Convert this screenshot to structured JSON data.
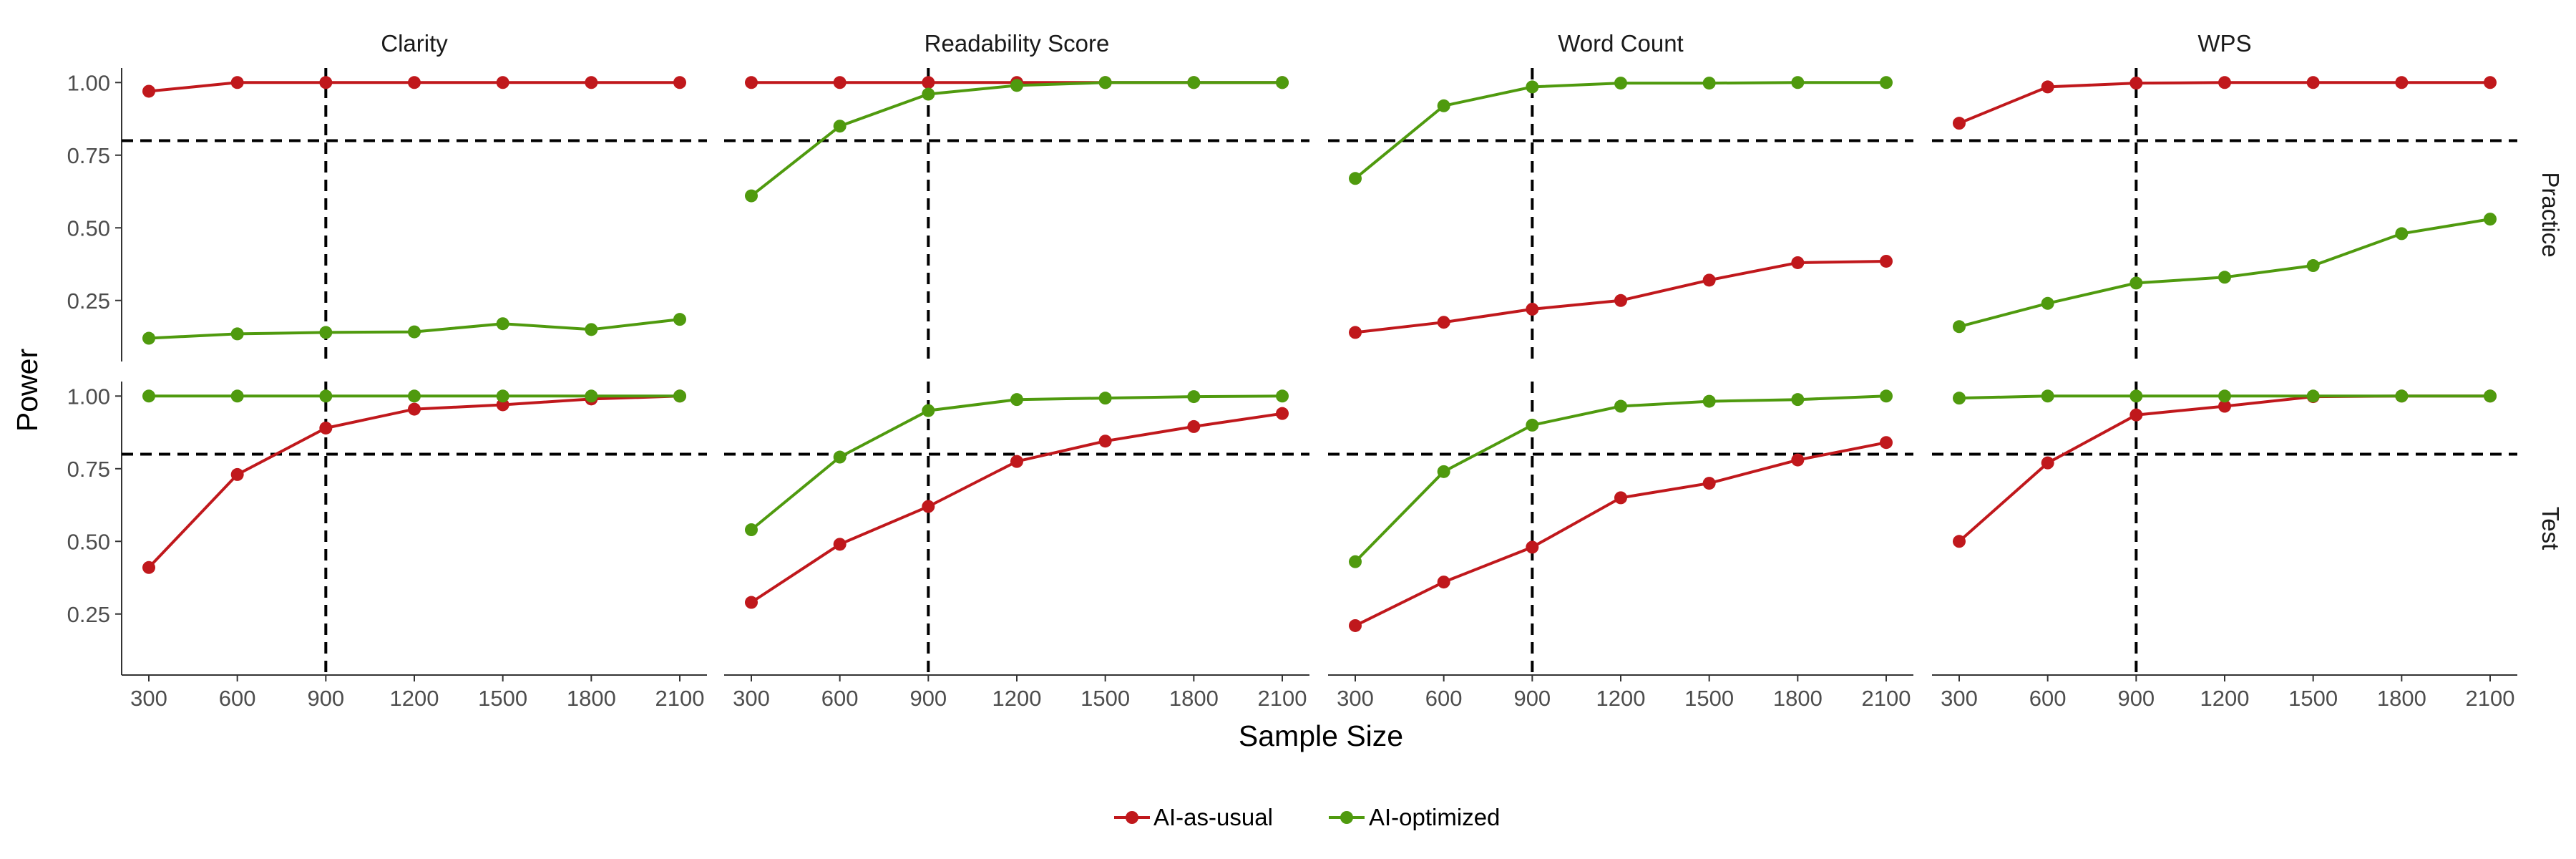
{
  "chart_data": {
    "type": "line",
    "title": "",
    "xlabel": "Sample Size",
    "ylabel": "Power",
    "x": [
      300,
      600,
      900,
      1200,
      1500,
      1800,
      2100
    ],
    "x_tick_labels": [
      "300",
      "600",
      "900",
      "1200",
      "1500",
      "1800",
      "2100"
    ],
    "y_ticks": [
      0.25,
      0.5,
      0.75,
      1.0
    ],
    "y_tick_labels": [
      "0.25",
      "0.50",
      "0.75",
      "1.00"
    ],
    "ylim": [
      0.04,
      1.05
    ],
    "reference_lines": {
      "y": 0.8,
      "x": 900,
      "style": "dashed"
    },
    "grid": false,
    "legend_position": "bottom",
    "legend": [
      {
        "name": "AI-as-usual",
        "color": "#c0181c"
      },
      {
        "name": "AI-optimized",
        "color": "#4f9a0e"
      }
    ],
    "facet_columns": [
      "Clarity",
      "Readability Score",
      "Word Count",
      "WPS"
    ],
    "facet_rows": [
      "Practice",
      "Test"
    ],
    "panels": [
      {
        "row": "Practice",
        "column": "Clarity",
        "series": [
          {
            "name": "AI-as-usual",
            "values": [
              0.97,
              1.0,
              1.0,
              1.0,
              1.0,
              1.0,
              1.0
            ]
          },
          {
            "name": "AI-optimized",
            "values": [
              0.12,
              0.135,
              0.14,
              0.142,
              0.17,
              0.15,
              0.185
            ]
          }
        ]
      },
      {
        "row": "Practice",
        "column": "Readability Score",
        "series": [
          {
            "name": "AI-as-usual",
            "values": [
              1.0,
              1.0,
              1.0,
              1.0,
              1.0,
              1.0,
              1.0
            ]
          },
          {
            "name": "AI-optimized",
            "values": [
              0.61,
              0.85,
              0.96,
              0.99,
              1.0,
              1.0,
              1.0
            ]
          }
        ]
      },
      {
        "row": "Practice",
        "column": "Word Count",
        "series": [
          {
            "name": "AI-as-usual",
            "values": [
              0.14,
              0.175,
              0.22,
              0.25,
              0.32,
              0.38,
              0.385
            ]
          },
          {
            "name": "AI-optimized",
            "values": [
              0.67,
              0.92,
              0.985,
              0.998,
              0.998,
              1.0,
              1.0
            ]
          }
        ]
      },
      {
        "row": "Practice",
        "column": "WPS",
        "series": [
          {
            "name": "AI-as-usual",
            "values": [
              0.86,
              0.985,
              0.998,
              1.0,
              1.0,
              1.0,
              1.0
            ]
          },
          {
            "name": "AI-optimized",
            "values": [
              0.16,
              0.24,
              0.31,
              0.33,
              0.37,
              0.48,
              0.53
            ]
          }
        ]
      },
      {
        "row": "Test",
        "column": "Clarity",
        "series": [
          {
            "name": "AI-as-usual",
            "values": [
              0.41,
              0.73,
              0.89,
              0.955,
              0.97,
              0.99,
              1.0
            ]
          },
          {
            "name": "AI-optimized",
            "values": [
              1.0,
              1.0,
              1.0,
              1.0,
              1.0,
              1.0,
              1.0
            ]
          }
        ]
      },
      {
        "row": "Test",
        "column": "Readability Score",
        "series": [
          {
            "name": "AI-as-usual",
            "values": [
              0.29,
              0.49,
              0.62,
              0.775,
              0.845,
              0.895,
              0.94
            ]
          },
          {
            "name": "AI-optimized",
            "values": [
              0.54,
              0.79,
              0.95,
              0.988,
              0.993,
              0.998,
              1.0
            ]
          }
        ]
      },
      {
        "row": "Test",
        "column": "Word Count",
        "series": [
          {
            "name": "AI-as-usual",
            "values": [
              0.21,
              0.36,
              0.48,
              0.65,
              0.7,
              0.78,
              0.84
            ]
          },
          {
            "name": "AI-optimized",
            "values": [
              0.43,
              0.74,
              0.9,
              0.965,
              0.982,
              0.988,
              1.0
            ]
          }
        ]
      },
      {
        "row": "Test",
        "column": "WPS",
        "series": [
          {
            "name": "AI-as-usual",
            "values": [
              0.5,
              0.77,
              0.935,
              0.965,
              0.998,
              1.0,
              1.0
            ]
          },
          {
            "name": "AI-optimized",
            "values": [
              0.993,
              1.0,
              1.0,
              1.0,
              1.0,
              1.0,
              1.0
            ]
          }
        ]
      }
    ]
  }
}
